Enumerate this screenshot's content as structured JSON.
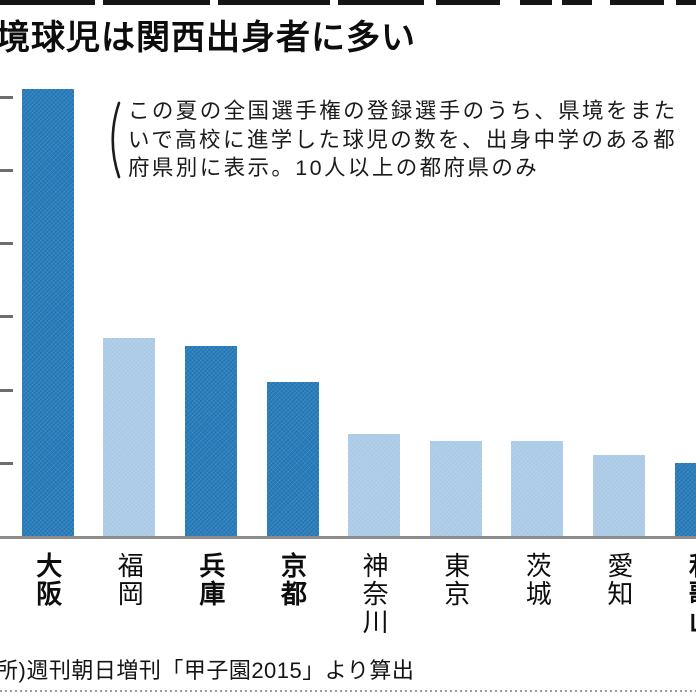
{
  "title": "境球児は関西出身者に多い",
  "annotation": {
    "lines": [
      "この夏の全国選手権の登録選手のうち、県境をまた",
      "いで高校に進学した球児の数を、出身中学のある都",
      "府県別に表示。10人以上の都府県のみ"
    ]
  },
  "source": "所)週刊朝日増刊「甲子園2015」より算出",
  "chart_data": {
    "type": "bar",
    "title": "境球児は関西出身者に多い",
    "categories": [
      "大阪",
      "福岡",
      "兵庫",
      "京都",
      "神奈川",
      "東京",
      "茨城",
      "愛知",
      "和歌山"
    ],
    "keys": [
      "osaka",
      "fukuoka",
      "hyogo",
      "kyoto",
      "kanagawa",
      "tokyo",
      "ibaraki",
      "aichi",
      "wakayama"
    ],
    "values": [
      61,
      27,
      26,
      21,
      14,
      13,
      13,
      11,
      10
    ],
    "kansai_highlight": [
      true,
      false,
      true,
      true,
      false,
      false,
      false,
      false,
      true
    ],
    "bold_labels": [
      true,
      false,
      true,
      true,
      false,
      false,
      false,
      false,
      true
    ],
    "colors": {
      "kansai_bar": "#2176b5",
      "other_bar": "#a9c9e6",
      "axis": "#8c8c8c",
      "tick": "#6e6e6e"
    },
    "xlabel": "",
    "ylabel": "",
    "ylim": [
      0,
      65
    ],
    "ytick_interval": 10,
    "grid": false,
    "legend_position": "none"
  }
}
